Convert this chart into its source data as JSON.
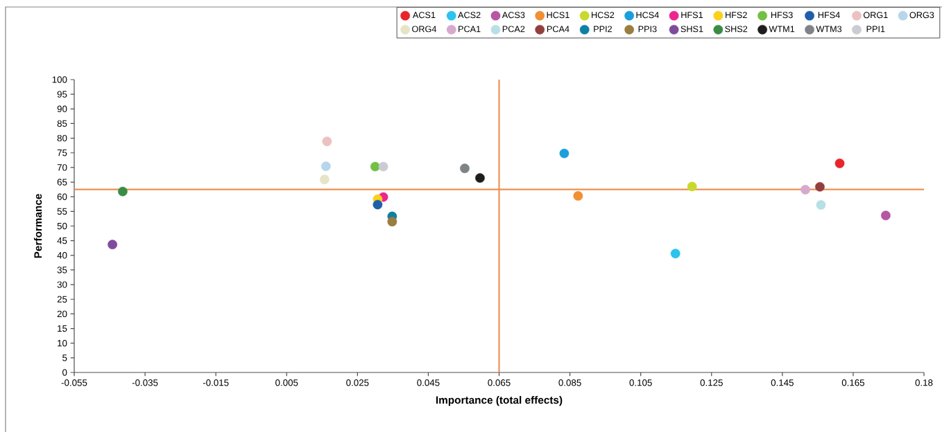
{
  "chart_data": {
    "type": "scatter",
    "xlabel": "Importance (total effects)",
    "ylabel": "Performance",
    "xlim": [
      -0.055,
      0.185
    ],
    "ylim": [
      0,
      100
    ],
    "xticks": [
      -0.055,
      -0.035,
      -0.015,
      0.005,
      0.025,
      0.045,
      0.065,
      0.085,
      0.105,
      0.125,
      0.145,
      0.165,
      {
        "value": 0.185,
        "label": "0.18"
      }
    ],
    "yticks": [
      0,
      5,
      10,
      15,
      20,
      25,
      30,
      35,
      40,
      45,
      50,
      55,
      60,
      65,
      70,
      75,
      80,
      85,
      90,
      95,
      100
    ],
    "marker": "circle",
    "legend": "top right",
    "ref_lines": [
      {
        "axis": "x",
        "value": 0.065,
        "color": "#ec8f4f"
      },
      {
        "axis": "y",
        "value": 62.5,
        "color": "#ec8f4f"
      }
    ],
    "series": [
      {
        "name": "ACS1",
        "color": "#e8262a",
        "x": [
          0.1612
        ],
        "values": [
          71.4
        ]
      },
      {
        "name": "ACS2",
        "color": "#2cc3ee",
        "x": [
          0.1148
        ],
        "values": [
          40.6
        ]
      },
      {
        "name": "ACS3",
        "color": "#b657a2",
        "x": [
          0.1742
        ],
        "values": [
          53.6
        ]
      },
      {
        "name": "HCS1",
        "color": "#f18f33",
        "x": [
          0.0873
        ],
        "values": [
          60.3
        ]
      },
      {
        "name": "HCS2",
        "color": "#c8d92c",
        "x": [
          0.1195
        ],
        "values": [
          63.5
        ]
      },
      {
        "name": "HCS4",
        "color": "#1b9fdc",
        "x": [
          0.0834
        ],
        "values": [
          74.8
        ]
      },
      {
        "name": "HFS1",
        "color": "#ec268f",
        "x": [
          0.0323
        ],
        "values": [
          59.9
        ]
      },
      {
        "name": "HFS2",
        "color": "#fcd11b",
        "x": [
          0.0307
        ],
        "values": [
          59.2
        ]
      },
      {
        "name": "HFS3",
        "color": "#72bf44",
        "x": [
          0.03
        ],
        "values": [
          70.3
        ]
      },
      {
        "name": "HFS4",
        "color": "#1f5ea8",
        "x": [
          0.0307
        ],
        "values": [
          57.3
        ]
      },
      {
        "name": "ORG1",
        "color": "#ebc2c1",
        "x": [
          0.0164
        ],
        "values": [
          78.9
        ]
      },
      {
        "name": "ORG3",
        "color": "#b6d6ea",
        "x": [
          0.0161
        ],
        "values": [
          70.4
        ]
      },
      {
        "name": "ORG4",
        "color": "#e6e4c6",
        "x": [
          0.0157
        ],
        "values": [
          65.9
        ]
      },
      {
        "name": "PCA1",
        "color": "#d7a9ce",
        "x": [
          0.1515
        ],
        "values": [
          62.4
        ]
      },
      {
        "name": "PCA2",
        "color": "#b7e0e6",
        "x": [
          0.1559
        ],
        "values": [
          57.2
        ]
      },
      {
        "name": "PCA4",
        "color": "#92403d",
        "x": [
          0.1556
        ],
        "values": [
          63.4
        ]
      },
      {
        "name": "PPI2",
        "color": "#0e80a4",
        "x": [
          0.0348
        ],
        "values": [
          53.3
        ]
      },
      {
        "name": "PPI3",
        "color": "#9a7d3f",
        "x": [
          0.0348
        ],
        "values": [
          51.5
        ]
      },
      {
        "name": "SHS1",
        "color": "#7e4c9c",
        "x": [
          -0.0442
        ],
        "values": [
          43.7
        ]
      },
      {
        "name": "SHS2",
        "color": "#3a8c45",
        "x": [
          -0.0413
        ],
        "values": [
          61.8
        ]
      },
      {
        "name": "WTM1",
        "color": "#1e1c1c",
        "x": [
          0.0596
        ],
        "values": [
          66.4
        ]
      },
      {
        "name": "WTM3",
        "color": "#7d8387",
        "x": [
          0.0553
        ],
        "values": [
          69.7
        ]
      },
      {
        "name": "PPI1",
        "color": "#c9ccd3",
        "x": [
          0.0323
        ],
        "values": [
          70.3
        ]
      }
    ]
  }
}
